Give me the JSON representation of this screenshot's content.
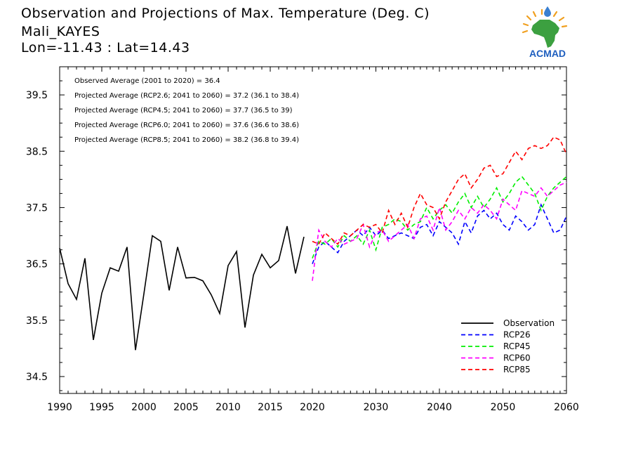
{
  "header": {
    "line1": "Observation and Projections of Max. Temperature (Deg. C)",
    "line2": "Mali_KAYES",
    "line3": "Lon=-11.43 : Lat=14.43"
  },
  "logo": {
    "text": "ACMAD"
  },
  "annotations": [
    "Observed Average (2001 to 2020) = 36.4",
    "Projected Average (RCP2.6; 2041 to 2060) = 37.2 (36.1 to 38.4)",
    "Projected Average (RCP4.5; 2041 to 2060) = 37.7 (36.5 to 39)",
    "Projected Average (RCP6.0; 2041 to 2060) = 37.6 (36.6 to 38.6)",
    "Projected Average (RCP8.5; 2041 to 2060) = 38.2 (36.8 to 39.4)"
  ],
  "chart_data": {
    "type": "line",
    "title": "Observation and Projections of Max. Temperature (Deg. C)",
    "xlabel": "",
    "ylabel": "",
    "xlim": [
      1990,
      2060
    ],
    "ylim": [
      34.2,
      40.0
    ],
    "x_ticks": [
      1990,
      1995,
      2000,
      2005,
      2010,
      2015,
      2020,
      2030,
      2040,
      2050,
      2060
    ],
    "y_ticks": [
      34.5,
      35.5,
      36.5,
      37.5,
      38.5,
      39.5
    ],
    "legend_position": "bottom-right",
    "grid": false,
    "series": [
      {
        "name": "Observation",
        "color": "#000000",
        "dashed": false,
        "x": [
          1990,
          1991,
          1992,
          1993,
          1994,
          1995,
          1996,
          1997,
          1998,
          1999,
          2000,
          2001,
          2002,
          2003,
          2004,
          2005,
          2006,
          2007,
          2008,
          2009,
          2010,
          2011,
          2012,
          2013,
          2014,
          2015,
          2016,
          2017,
          2018,
          2019
        ],
        "values": [
          36.78,
          36.15,
          35.87,
          36.6,
          35.15,
          35.98,
          36.43,
          36.37,
          36.8,
          34.97,
          35.97,
          37.0,
          36.9,
          36.03,
          36.8,
          36.25,
          36.26,
          36.2,
          35.95,
          35.62,
          36.47,
          36.72,
          35.37,
          36.3,
          36.67,
          36.43,
          36.56,
          37.17,
          36.33,
          36.98
        ]
      },
      {
        "name": "RCP26",
        "color": "#0000ff",
        "dashed": true,
        "x": [
          2020,
          2021,
          2022,
          2023,
          2024,
          2025,
          2026,
          2027,
          2028,
          2029,
          2030,
          2031,
          2032,
          2033,
          2034,
          2035,
          2036,
          2037,
          2038,
          2039,
          2040,
          2041,
          2042,
          2043,
          2044,
          2045,
          2046,
          2047,
          2048,
          2049,
          2050,
          2051,
          2052,
          2053,
          2054,
          2055,
          2056,
          2057,
          2058,
          2059,
          2060
        ],
        "values": [
          36.5,
          36.8,
          36.9,
          36.8,
          36.7,
          36.9,
          37.0,
          37.1,
          37.0,
          37.15,
          37.0,
          37.1,
          36.95,
          37.0,
          37.05,
          37.0,
          36.95,
          37.15,
          37.2,
          37.0,
          37.25,
          37.15,
          37.05,
          36.85,
          37.25,
          37.05,
          37.35,
          37.45,
          37.3,
          37.4,
          37.2,
          37.1,
          37.35,
          37.25,
          37.1,
          37.2,
          37.55,
          37.3,
          37.05,
          37.1,
          37.35
        ]
      },
      {
        "name": "RCP45",
        "color": "#00ee00",
        "dashed": true,
        "x": [
          2020,
          2021,
          2022,
          2023,
          2024,
          2025,
          2026,
          2027,
          2028,
          2029,
          2030,
          2031,
          2032,
          2033,
          2034,
          2035,
          2036,
          2037,
          2038,
          2039,
          2040,
          2041,
          2042,
          2043,
          2044,
          2045,
          2046,
          2047,
          2048,
          2049,
          2050,
          2051,
          2052,
          2053,
          2054,
          2055,
          2056,
          2057,
          2058,
          2059,
          2060
        ],
        "values": [
          36.6,
          36.9,
          36.85,
          36.95,
          36.8,
          37.0,
          36.9,
          37.0,
          36.85,
          37.1,
          36.75,
          37.15,
          37.2,
          37.3,
          37.25,
          37.1,
          37.2,
          37.25,
          37.5,
          37.3,
          37.45,
          37.55,
          37.4,
          37.6,
          37.75,
          37.5,
          37.7,
          37.5,
          37.65,
          37.85,
          37.6,
          37.75,
          37.95,
          38.05,
          37.9,
          37.75,
          37.45,
          37.7,
          37.85,
          37.95,
          38.05
        ]
      },
      {
        "name": "RCP60",
        "color": "#ff00ff",
        "dashed": true,
        "x": [
          2020,
          2021,
          2022,
          2023,
          2024,
          2025,
          2026,
          2027,
          2028,
          2029,
          2030,
          2031,
          2032,
          2033,
          2034,
          2035,
          2036,
          2037,
          2038,
          2039,
          2040,
          2041,
          2042,
          2043,
          2044,
          2045,
          2046,
          2047,
          2048,
          2049,
          2050,
          2051,
          2052,
          2053,
          2054,
          2055,
          2056,
          2057,
          2058,
          2059,
          2060
        ],
        "values": [
          36.2,
          37.1,
          36.9,
          36.8,
          36.95,
          36.85,
          36.9,
          36.95,
          37.2,
          36.8,
          37.05,
          37.1,
          36.9,
          37.0,
          37.1,
          37.2,
          36.95,
          37.3,
          37.35,
          37.1,
          37.5,
          37.1,
          37.25,
          37.45,
          37.3,
          37.5,
          37.4,
          37.55,
          37.45,
          37.3,
          37.65,
          37.55,
          37.45,
          37.8,
          37.75,
          37.7,
          37.85,
          37.7,
          37.8,
          37.9,
          37.95
        ]
      },
      {
        "name": "RCP85",
        "color": "#ff0000",
        "dashed": true,
        "x": [
          2020,
          2021,
          2022,
          2023,
          2024,
          2025,
          2026,
          2027,
          2028,
          2029,
          2030,
          2031,
          2032,
          2033,
          2034,
          2035,
          2036,
          2037,
          2038,
          2039,
          2040,
          2041,
          2042,
          2043,
          2044,
          2045,
          2046,
          2047,
          2048,
          2049,
          2050,
          2051,
          2052,
          2053,
          2054,
          2055,
          2056,
          2057,
          2058,
          2059,
          2060
        ],
        "values": [
          36.9,
          36.85,
          37.05,
          36.95,
          36.85,
          37.05,
          37.0,
          37.1,
          37.2,
          37.15,
          37.2,
          37.05,
          37.45,
          37.2,
          37.4,
          37.15,
          37.5,
          37.75,
          37.55,
          37.5,
          37.3,
          37.6,
          37.8,
          38.0,
          38.1,
          37.85,
          38.0,
          38.2,
          38.25,
          38.05,
          38.1,
          38.3,
          38.5,
          38.35,
          38.55,
          38.6,
          38.55,
          38.6,
          38.75,
          38.7,
          38.45
        ]
      }
    ]
  }
}
